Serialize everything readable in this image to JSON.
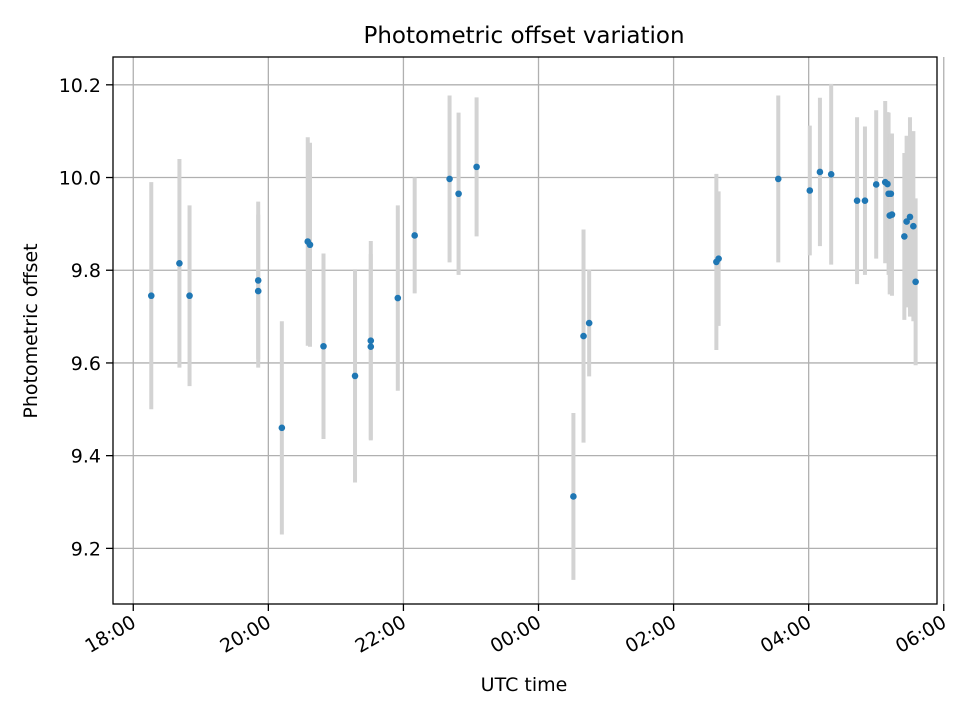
{
  "chart_data": {
    "type": "scatter",
    "title": "Photometric offset variation",
    "xlabel": "UTC time",
    "ylabel": "Photometric offset",
    "x_axis": {
      "type": "time",
      "range_hours": [
        17.7,
        29.9
      ],
      "ticks": [
        {
          "hour": 18,
          "label": "18:00"
        },
        {
          "hour": 20,
          "label": "20:00"
        },
        {
          "hour": 22,
          "label": "22:00"
        },
        {
          "hour": 24,
          "label": "00:00"
        },
        {
          "hour": 26,
          "label": "02:00"
        },
        {
          "hour": 28,
          "label": "04:00"
        },
        {
          "hour": 30,
          "label": "06:00"
        }
      ]
    },
    "y_axis": {
      "ylim": [
        9.08,
        10.26
      ],
      "ticks": [
        9.2,
        9.4,
        9.6,
        9.8,
        10.0,
        10.2
      ],
      "tick_labels": [
        "9.2",
        "9.4",
        "9.6",
        "9.8",
        "10.0",
        "10.2"
      ]
    },
    "grid": true,
    "colors": {
      "point": "#1f77b4",
      "errorbar": "#d3d3d3",
      "grid": "#b0b0b0"
    },
    "points": [
      {
        "time": "18:16",
        "y": 9.745,
        "err": 0.245
      },
      {
        "time": "18:41",
        "y": 9.815,
        "err": 0.225
      },
      {
        "time": "18:50",
        "y": 9.745,
        "err": 0.195
      },
      {
        "time": "19:51",
        "y": 9.778,
        "err": 0.17
      },
      {
        "time": "19:51",
        "y": 9.755,
        "err": 0.165
      },
      {
        "time": "20:12",
        "y": 9.46,
        "err": 0.23
      },
      {
        "time": "20:35",
        "y": 9.862,
        "err": 0.225
      },
      {
        "time": "20:37",
        "y": 9.855,
        "err": 0.22
      },
      {
        "time": "20:49",
        "y": 9.636,
        "err": 0.2
      },
      {
        "time": "21:17",
        "y": 9.572,
        "err": 0.23
      },
      {
        "time": "21:31",
        "y": 9.648,
        "err": 0.215
      },
      {
        "time": "21:31",
        "y": 9.635,
        "err": 0.2
      },
      {
        "time": "21:55",
        "y": 9.74,
        "err": 0.2
      },
      {
        "time": "22:10",
        "y": 9.875,
        "err": 0.125
      },
      {
        "time": "22:41",
        "y": 9.997,
        "err": 0.18
      },
      {
        "time": "22:49",
        "y": 9.965,
        "err": 0.175
      },
      {
        "time": "23:05",
        "y": 10.023,
        "err": 0.15
      },
      {
        "time": "00:31",
        "y": 9.312,
        "err": 0.18
      },
      {
        "time": "00:40",
        "y": 9.658,
        "err": 0.23
      },
      {
        "time": "00:45",
        "y": 9.686,
        "err": 0.115
      },
      {
        "time": "02:38",
        "y": 9.818,
        "err": 0.19
      },
      {
        "time": "02:40",
        "y": 9.825,
        "err": 0.145
      },
      {
        "time": "03:33",
        "y": 9.997,
        "err": 0.18
      },
      {
        "time": "04:01",
        "y": 9.972,
        "err": 0.14
      },
      {
        "time": "04:10",
        "y": 10.012,
        "err": 0.16
      },
      {
        "time": "04:20",
        "y": 10.007,
        "err": 0.195
      },
      {
        "time": "04:43",
        "y": 9.95,
        "err": 0.18
      },
      {
        "time": "04:50",
        "y": 9.95,
        "err": 0.16
      },
      {
        "time": "05:00",
        "y": 9.985,
        "err": 0.16
      },
      {
        "time": "05:08",
        "y": 9.99,
        "err": 0.175
      },
      {
        "time": "05:10",
        "y": 9.986,
        "err": 0.155
      },
      {
        "time": "05:11",
        "y": 9.965,
        "err": 0.175
      },
      {
        "time": "05:12",
        "y": 9.918,
        "err": 0.17
      },
      {
        "time": "05:13",
        "y": 9.965,
        "err": 0.13
      },
      {
        "time": "05:14",
        "y": 9.92,
        "err": 0.175
      },
      {
        "time": "05:25",
        "y": 9.873,
        "err": 0.18
      },
      {
        "time": "05:27",
        "y": 9.905,
        "err": 0.185
      },
      {
        "time": "05:30",
        "y": 9.915,
        "err": 0.215
      },
      {
        "time": "05:33",
        "y": 9.895,
        "err": 0.205
      },
      {
        "time": "05:35",
        "y": 9.775,
        "err": 0.18
      }
    ]
  }
}
